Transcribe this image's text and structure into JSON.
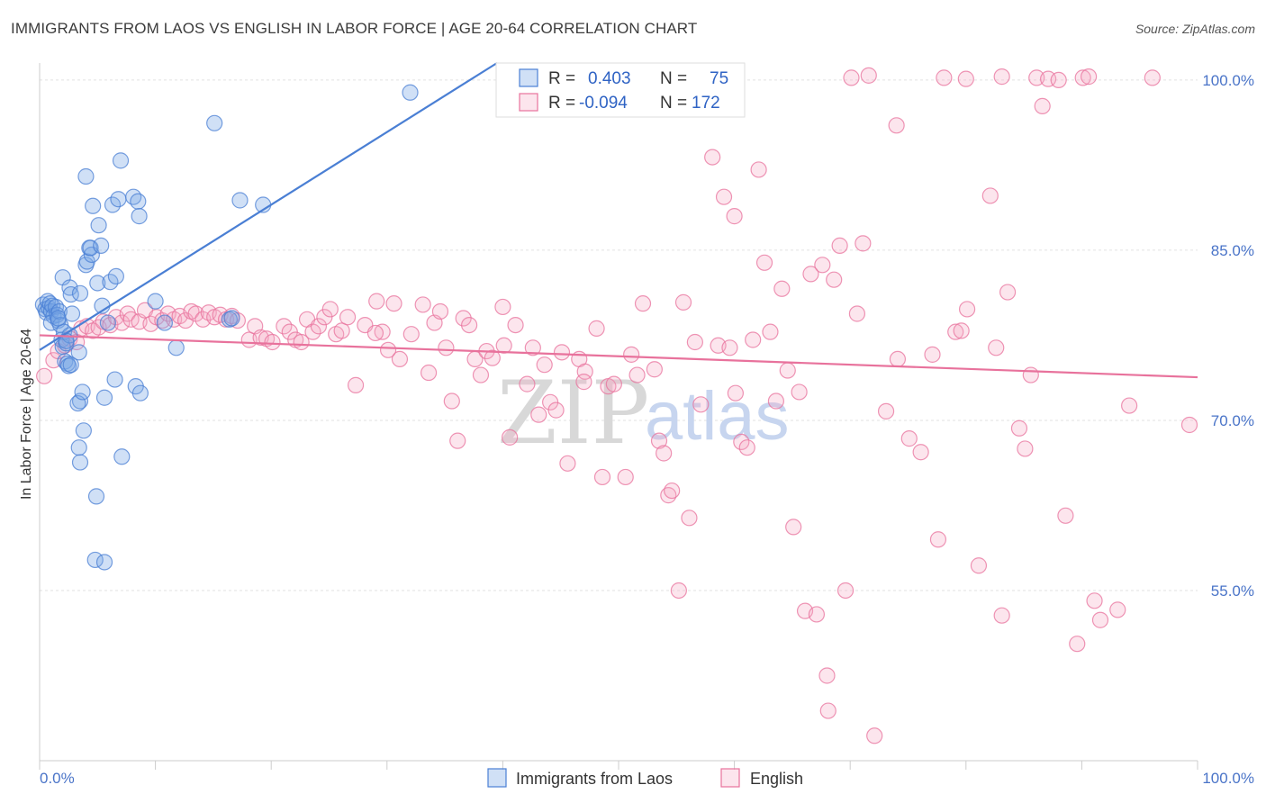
{
  "title": "IMMIGRANTS FROM LAOS VS ENGLISH IN LABOR FORCE | AGE 20-64 CORRELATION CHART",
  "source": "Source: ZipAtlas.com",
  "colors": {
    "blue": "#4a7fd4",
    "blue_fill": "rgba(120,165,230,0.35)",
    "pink": "#e8729c",
    "pink_fill": "rgba(244,170,196,0.30)",
    "grid": "#e2e2e2",
    "axis_text": "#4a74c8"
  },
  "legend": {
    "r_label": "R =",
    "n_label": "N =",
    "series1": {
      "r": "0.403",
      "n": "75"
    },
    "series2": {
      "r": "-0.094",
      "n": "172"
    }
  },
  "watermark": {
    "part1": "ZIP",
    "part2": "atlas"
  },
  "chart_data": {
    "type": "scatter",
    "xlabel": "",
    "ylabel": "In Labor Force | Age 20-64",
    "xlim": [
      0,
      100
    ],
    "ylim": [
      40,
      101.5
    ],
    "x_tick_labels": [
      "0.0%",
      "100.0%"
    ],
    "y_ticks": [
      55,
      70,
      85,
      100
    ],
    "y_tick_labels": [
      "55.0%",
      "70.0%",
      "85.0%",
      "100.0%"
    ],
    "grid": true,
    "series": [
      {
        "name": "Immigrants from Laos",
        "color": "#4a7fd4",
        "trend": {
          "x": [
            0,
            39.5
          ],
          "y": [
            76.2,
            101.5
          ]
        },
        "points": [
          [
            0.3,
            80.2
          ],
          [
            0.5,
            79.8
          ],
          [
            0.6,
            79.5
          ],
          [
            0.7,
            80.5
          ],
          [
            0.8,
            79.9
          ],
          [
            0.9,
            80.3
          ],
          [
            1.0,
            79.6
          ],
          [
            1.1,
            80.1
          ],
          [
            1.2,
            79.2
          ],
          [
            1.0,
            78.6
          ],
          [
            1.4,
            80.0
          ],
          [
            1.5,
            79.3
          ],
          [
            1.6,
            78.8
          ],
          [
            1.7,
            79.6
          ],
          [
            1.8,
            78.4
          ],
          [
            1.9,
            77.1
          ],
          [
            2.0,
            76.5
          ],
          [
            2.1,
            77.8
          ],
          [
            2.2,
            75.2
          ],
          [
            2.3,
            76.8
          ],
          [
            2.4,
            75.0
          ],
          [
            2.5,
            74.8
          ],
          [
            2.6,
            77.5
          ],
          [
            2.7,
            74.9
          ],
          [
            2.8,
            79.4
          ],
          [
            2.0,
            82.6
          ],
          [
            2.6,
            81.7
          ],
          [
            2.7,
            81.1
          ],
          [
            3.5,
            81.2
          ],
          [
            3.4,
            76.0
          ],
          [
            3.5,
            71.7
          ],
          [
            3.3,
            71.5
          ],
          [
            3.7,
            72.5
          ],
          [
            3.4,
            67.6
          ],
          [
            3.5,
            66.3
          ],
          [
            3.8,
            69.1
          ],
          [
            4.0,
            91.5
          ],
          [
            4.0,
            83.7
          ],
          [
            4.1,
            84.0
          ],
          [
            4.3,
            85.2
          ],
          [
            4.5,
            84.6
          ],
          [
            4.4,
            85.2
          ],
          [
            4.6,
            88.9
          ],
          [
            5.0,
            82.1
          ],
          [
            5.1,
            87.2
          ],
          [
            5.3,
            85.4
          ],
          [
            5.4,
            80.1
          ],
          [
            5.6,
            72.0
          ],
          [
            5.9,
            78.6
          ],
          [
            6.1,
            82.2
          ],
          [
            6.3,
            89.0
          ],
          [
            6.5,
            73.6
          ],
          [
            6.6,
            82.7
          ],
          [
            6.8,
            89.5
          ],
          [
            7.0,
            92.9
          ],
          [
            7.1,
            66.8
          ],
          [
            8.1,
            89.7
          ],
          [
            8.3,
            73.0
          ],
          [
            8.5,
            89.3
          ],
          [
            8.6,
            88.0
          ],
          [
            8.7,
            72.4
          ],
          [
            10.0,
            80.5
          ],
          [
            10.8,
            78.6
          ],
          [
            11.8,
            76.4
          ],
          [
            15.1,
            96.2
          ],
          [
            16.4,
            78.9
          ],
          [
            16.6,
            79.0
          ],
          [
            17.3,
            89.4
          ],
          [
            19.3,
            89.0
          ],
          [
            32.0,
            98.9
          ],
          [
            2.3,
            77.0
          ],
          [
            4.9,
            63.3
          ],
          [
            4.8,
            57.7
          ],
          [
            5.6,
            57.5
          ],
          [
            1.6,
            79.0
          ]
        ]
      },
      {
        "name": "English",
        "color": "#e8729c",
        "trend": {
          "x": [
            0,
            100
          ],
          "y": [
            77.5,
            73.8
          ]
        },
        "points": [
          [
            0.4,
            73.9
          ],
          [
            1.2,
            75.3
          ],
          [
            1.6,
            76.1
          ],
          [
            2.2,
            76.6
          ],
          [
            2.6,
            77.2
          ],
          [
            3.2,
            76.9
          ],
          [
            3.6,
            78.1
          ],
          [
            4.1,
            78.3
          ],
          [
            4.6,
            77.9
          ],
          [
            5.1,
            78.2
          ],
          [
            5.5,
            78.7
          ],
          [
            6.1,
            78.4
          ],
          [
            6.6,
            79.1
          ],
          [
            7.1,
            78.6
          ],
          [
            7.6,
            79.4
          ],
          [
            7.9,
            78.9
          ],
          [
            8.6,
            78.7
          ],
          [
            9.1,
            79.7
          ],
          [
            9.6,
            78.5
          ],
          [
            10.1,
            79.1
          ],
          [
            10.6,
            78.8
          ],
          [
            11.1,
            79.4
          ],
          [
            11.6,
            78.9
          ],
          [
            12.1,
            79.2
          ],
          [
            12.6,
            78.8
          ],
          [
            13.1,
            79.6
          ],
          [
            13.5,
            79.4
          ],
          [
            14.1,
            78.9
          ],
          [
            14.6,
            79.5
          ],
          [
            15.1,
            79.1
          ],
          [
            15.6,
            79.3
          ],
          [
            16.1,
            78.9
          ],
          [
            16.6,
            79.2
          ],
          [
            17.1,
            78.8
          ],
          [
            18.1,
            77.1
          ],
          [
            18.6,
            78.3
          ],
          [
            19.1,
            77.3
          ],
          [
            19.6,
            77.2
          ],
          [
            20.1,
            76.9
          ],
          [
            21.1,
            78.3
          ],
          [
            21.6,
            77.8
          ],
          [
            22.1,
            77.1
          ],
          [
            22.6,
            76.9
          ],
          [
            23.1,
            78.9
          ],
          [
            23.6,
            77.8
          ],
          [
            24.1,
            78.3
          ],
          [
            24.6,
            79.1
          ],
          [
            25.1,
            79.8
          ],
          [
            25.6,
            77.6
          ],
          [
            26.1,
            77.9
          ],
          [
            26.6,
            79.1
          ],
          [
            27.3,
            73.1
          ],
          [
            28.1,
            78.4
          ],
          [
            29.1,
            80.5
          ],
          [
            29.6,
            77.8
          ],
          [
            30.1,
            76.2
          ],
          [
            30.6,
            80.3
          ],
          [
            31.1,
            75.4
          ],
          [
            32.1,
            77.6
          ],
          [
            33.1,
            80.2
          ],
          [
            33.6,
            74.2
          ],
          [
            34.1,
            78.6
          ],
          [
            34.6,
            79.6
          ],
          [
            35.1,
            76.4
          ],
          [
            35.6,
            71.7
          ],
          [
            36.1,
            68.2
          ],
          [
            36.6,
            79.0
          ],
          [
            37.1,
            78.4
          ],
          [
            37.6,
            75.4
          ],
          [
            38.1,
            74.0
          ],
          [
            38.6,
            76.1
          ],
          [
            39.1,
            75.5
          ],
          [
            40.1,
            76.6
          ],
          [
            40.6,
            68.5
          ],
          [
            41.1,
            78.4
          ],
          [
            42.1,
            73.2
          ],
          [
            42.6,
            76.4
          ],
          [
            43.1,
            70.5
          ],
          [
            43.6,
            74.9
          ],
          [
            44.1,
            71.6
          ],
          [
            44.6,
            70.9
          ],
          [
            45.1,
            76.0
          ],
          [
            45.6,
            66.2
          ],
          [
            46.6,
            75.4
          ],
          [
            47.1,
            74.3
          ],
          [
            48.1,
            78.1
          ],
          [
            48.6,
            65.0
          ],
          [
            49.1,
            73.0
          ],
          [
            49.6,
            73.2
          ],
          [
            50.6,
            65.0
          ],
          [
            51.1,
            75.8
          ],
          [
            51.6,
            74.0
          ],
          [
            52.1,
            80.3
          ],
          [
            53.1,
            74.5
          ],
          [
            53.5,
            68.2
          ],
          [
            53.9,
            67.1
          ],
          [
            54.3,
            63.4
          ],
          [
            54.6,
            63.8
          ],
          [
            55.2,
            55.0
          ],
          [
            55.6,
            80.4
          ],
          [
            56.1,
            61.4
          ],
          [
            56.6,
            76.9
          ],
          [
            57.1,
            71.4
          ],
          [
            58.1,
            93.2
          ],
          [
            58.6,
            76.6
          ],
          [
            59.1,
            89.7
          ],
          [
            59.6,
            76.4
          ],
          [
            60.1,
            72.4
          ],
          [
            60.6,
            68.1
          ],
          [
            61.1,
            67.6
          ],
          [
            61.6,
            77.1
          ],
          [
            62.1,
            92.1
          ],
          [
            62.6,
            83.9
          ],
          [
            63.1,
            77.8
          ],
          [
            63.6,
            71.7
          ],
          [
            64.1,
            81.6
          ],
          [
            64.6,
            74.4
          ],
          [
            65.1,
            60.6
          ],
          [
            65.6,
            72.5
          ],
          [
            66.1,
            53.2
          ],
          [
            66.6,
            82.9
          ],
          [
            67.1,
            52.9
          ],
          [
            67.6,
            83.7
          ],
          [
            68.1,
            44.4
          ],
          [
            68.6,
            82.4
          ],
          [
            69.1,
            85.4
          ],
          [
            69.6,
            55.0
          ],
          [
            70.1,
            100.2
          ],
          [
            70.6,
            79.4
          ],
          [
            71.1,
            85.6
          ],
          [
            71.6,
            100.4
          ],
          [
            72.1,
            42.2
          ],
          [
            73.1,
            70.8
          ],
          [
            74.1,
            75.4
          ],
          [
            75.1,
            68.4
          ],
          [
            76.1,
            67.2
          ],
          [
            77.1,
            75.8
          ],
          [
            77.6,
            59.5
          ],
          [
            78.1,
            100.2
          ],
          [
            79.1,
            77.8
          ],
          [
            79.6,
            77.9
          ],
          [
            80.1,
            79.8
          ],
          [
            81.1,
            57.2
          ],
          [
            82.1,
            89.8
          ],
          [
            82.6,
            76.4
          ],
          [
            83.1,
            52.8
          ],
          [
            83.6,
            81.3
          ],
          [
            84.6,
            69.3
          ],
          [
            85.1,
            67.5
          ],
          [
            85.6,
            74.0
          ],
          [
            86.1,
            100.2
          ],
          [
            86.6,
            97.7
          ],
          [
            87.1,
            100.1
          ],
          [
            88.6,
            61.6
          ],
          [
            90.1,
            100.2
          ],
          [
            90.6,
            100.3
          ],
          [
            91.1,
            54.1
          ],
          [
            91.6,
            52.4
          ],
          [
            93.1,
            53.3
          ],
          [
            94.1,
            71.3
          ],
          [
            96.1,
            100.2
          ],
          [
            99.3,
            69.6
          ],
          [
            83.1,
            100.3
          ],
          [
            88.0,
            100.0
          ],
          [
            80.0,
            100.1
          ],
          [
            74.0,
            96.0
          ],
          [
            60.0,
            88.0
          ],
          [
            40.0,
            80.0
          ],
          [
            29.0,
            77.7
          ],
          [
            47.0,
            73.4
          ],
          [
            68.0,
            47.5
          ],
          [
            89.6,
            50.3
          ]
        ]
      }
    ]
  },
  "bottom_legend": {
    "series1": "Immigrants from Laos",
    "series2": "English"
  }
}
